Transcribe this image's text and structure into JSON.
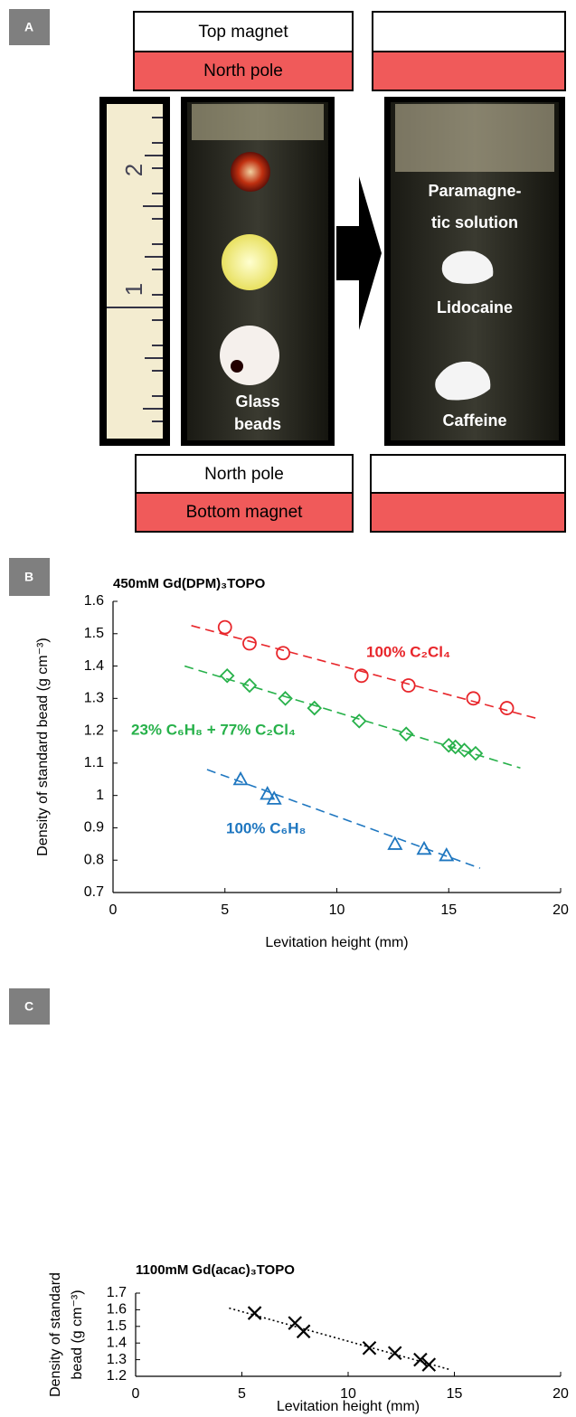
{
  "panel_labels": [
    "A",
    "B",
    "C"
  ],
  "panel_a": {
    "top_magnet": "Top magnet",
    "top_pole": "North pole",
    "bottom_pole": "North pole",
    "bottom_magnet": "Bottom magnet",
    "ruler": [
      "2",
      "1"
    ],
    "left_vial": [
      "Glass",
      "beads"
    ],
    "right_vial": {
      "solution": [
        "Paramagne-",
        "tic solution"
      ],
      "sample_1": "Lidocaine",
      "sample_2": "Caffeine"
    }
  },
  "chart_data": [
    {
      "type": "scatter",
      "title": "450mM Gd(DPM)₃TOPO",
      "x_label": "Levitation height (mm)",
      "y_label": [
        "Density of standard bead (g cm⁻³)"
      ],
      "xlim": [
        0,
        20
      ],
      "xticks": [
        0,
        5,
        10,
        15,
        20
      ],
      "ylim": [
        0.7,
        1.6
      ],
      "yticks": [
        0.7,
        0.8,
        0.9,
        1,
        1.1,
        1.2,
        1.3,
        1.4,
        1.5,
        1.6
      ],
      "series": [
        {
          "name": "100% C₂Cl₄",
          "color": "#e8262b",
          "marker": "circle",
          "x": [
            5.0,
            6.1,
            7.6,
            11.1,
            13.2,
            16.1,
            17.6
          ],
          "values": [
            1.52,
            1.47,
            1.44,
            1.37,
            1.34,
            1.3,
            1.27
          ],
          "trend": {
            "x": [
              3.5,
              19.1
            ],
            "values": [
              1.525,
              1.235
            ]
          }
        },
        {
          "name": "23% C₆H₈ + 77% C₂Cl₄",
          "color": "#27b14a",
          "marker": "diamond",
          "x": [
            5.1,
            6.1,
            7.7,
            9.0,
            11.0,
            13.1,
            15.0,
            15.3,
            15.7,
            16.2
          ],
          "values": [
            1.37,
            1.34,
            1.3,
            1.27,
            1.23,
            1.19,
            1.155,
            1.15,
            1.14,
            1.13
          ],
          "trend": {
            "x": [
              3.2,
              18.2
            ],
            "values": [
              1.4,
              1.085
            ]
          }
        },
        {
          "name": "100% C₆H₈",
          "color": "#1f77c0",
          "marker": "triangle",
          "x": [
            5.7,
            6.9,
            7.2,
            12.6,
            13.9,
            14.9
          ],
          "values": [
            1.05,
            1.005,
            0.99,
            0.85,
            0.835,
            0.815
          ],
          "trend": {
            "x": [
              4.2,
              16.4
            ],
            "values": [
              1.08,
              0.775
            ]
          }
        }
      ]
    },
    {
      "type": "scatter",
      "title": "1100mM Gd(acac)₃TOPO",
      "x_label": "Levitation height (mm)",
      "y_label": [
        "Density of standard",
        "bead (g cm⁻³)"
      ],
      "xlim": [
        0,
        20
      ],
      "xticks": [
        0,
        5,
        10,
        15,
        20
      ],
      "ylim": [
        1.2,
        1.7
      ],
      "yticks": [
        1.2,
        1.3,
        1.4,
        1.5,
        1.6,
        1.7
      ],
      "series": [
        {
          "color": "#000000",
          "marker": "x",
          "x": [
            5.6,
            7.5,
            7.9,
            11.0,
            12.2,
            13.4,
            13.8
          ],
          "values": [
            1.58,
            1.52,
            1.47,
            1.37,
            1.34,
            1.3,
            1.27
          ],
          "trend": {
            "x": [
              4.4,
              14.8
            ],
            "values": [
              1.61,
              1.24
            ]
          }
        }
      ]
    }
  ]
}
